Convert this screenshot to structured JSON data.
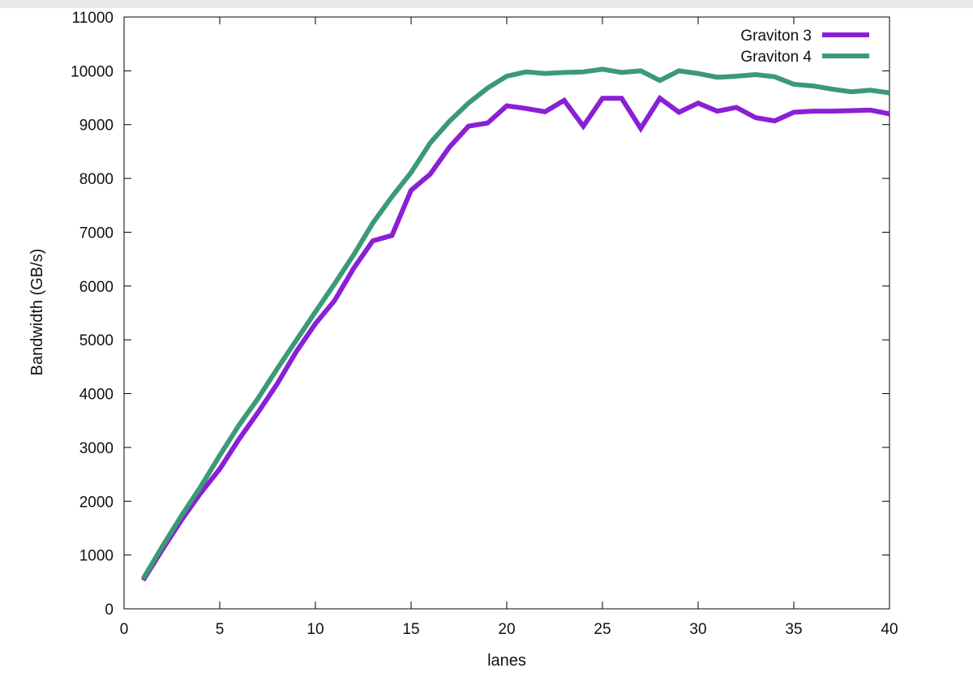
{
  "chart_data": {
    "type": "line",
    "title": "",
    "xlabel": "lanes",
    "ylabel": "Bandwidth (GB/s)",
    "xlim": [
      0,
      40
    ],
    "ylim": [
      0,
      11000
    ],
    "x_ticks": [
      0,
      5,
      10,
      15,
      20,
      25,
      30,
      35,
      40
    ],
    "y_ticks": [
      0,
      1000,
      2000,
      3000,
      4000,
      5000,
      6000,
      7000,
      8000,
      9000,
      10000,
      11000
    ],
    "grid": false,
    "legend_position": "top-right",
    "x": [
      1,
      2,
      3,
      4,
      5,
      6,
      7,
      8,
      9,
      10,
      11,
      12,
      13,
      14,
      15,
      16,
      17,
      18,
      19,
      20,
      21,
      22,
      23,
      24,
      25,
      26,
      27,
      28,
      29,
      30,
      31,
      32,
      33,
      34,
      35,
      36,
      37,
      38,
      39,
      40
    ],
    "series": [
      {
        "name": "Graviton 3",
        "color": "#8a1fd6",
        "values": [
          530,
          1100,
          1650,
          2150,
          2600,
          3150,
          3650,
          4180,
          4780,
          5300,
          5730,
          6330,
          6840,
          6940,
          7780,
          8080,
          8580,
          8970,
          9030,
          9350,
          9300,
          9240,
          9450,
          8970,
          9490,
          9490,
          8930,
          9490,
          9230,
          9400,
          9250,
          9320,
          9130,
          9070,
          9230,
          9250,
          9250,
          9260,
          9270,
          9200
        ]
      },
      {
        "name": "Graviton 4",
        "color": "#3a9a78",
        "values": [
          560,
          1160,
          1730,
          2270,
          2850,
          3410,
          3910,
          4460,
          4990,
          5520,
          6040,
          6580,
          7170,
          7660,
          8110,
          8660,
          9060,
          9400,
          9680,
          9900,
          9980,
          9950,
          9970,
          9980,
          10030,
          9970,
          10000,
          9820,
          10000,
          9950,
          9880,
          9900,
          9930,
          9890,
          9750,
          9720,
          9660,
          9610,
          9640,
          9590
        ]
      }
    ]
  }
}
